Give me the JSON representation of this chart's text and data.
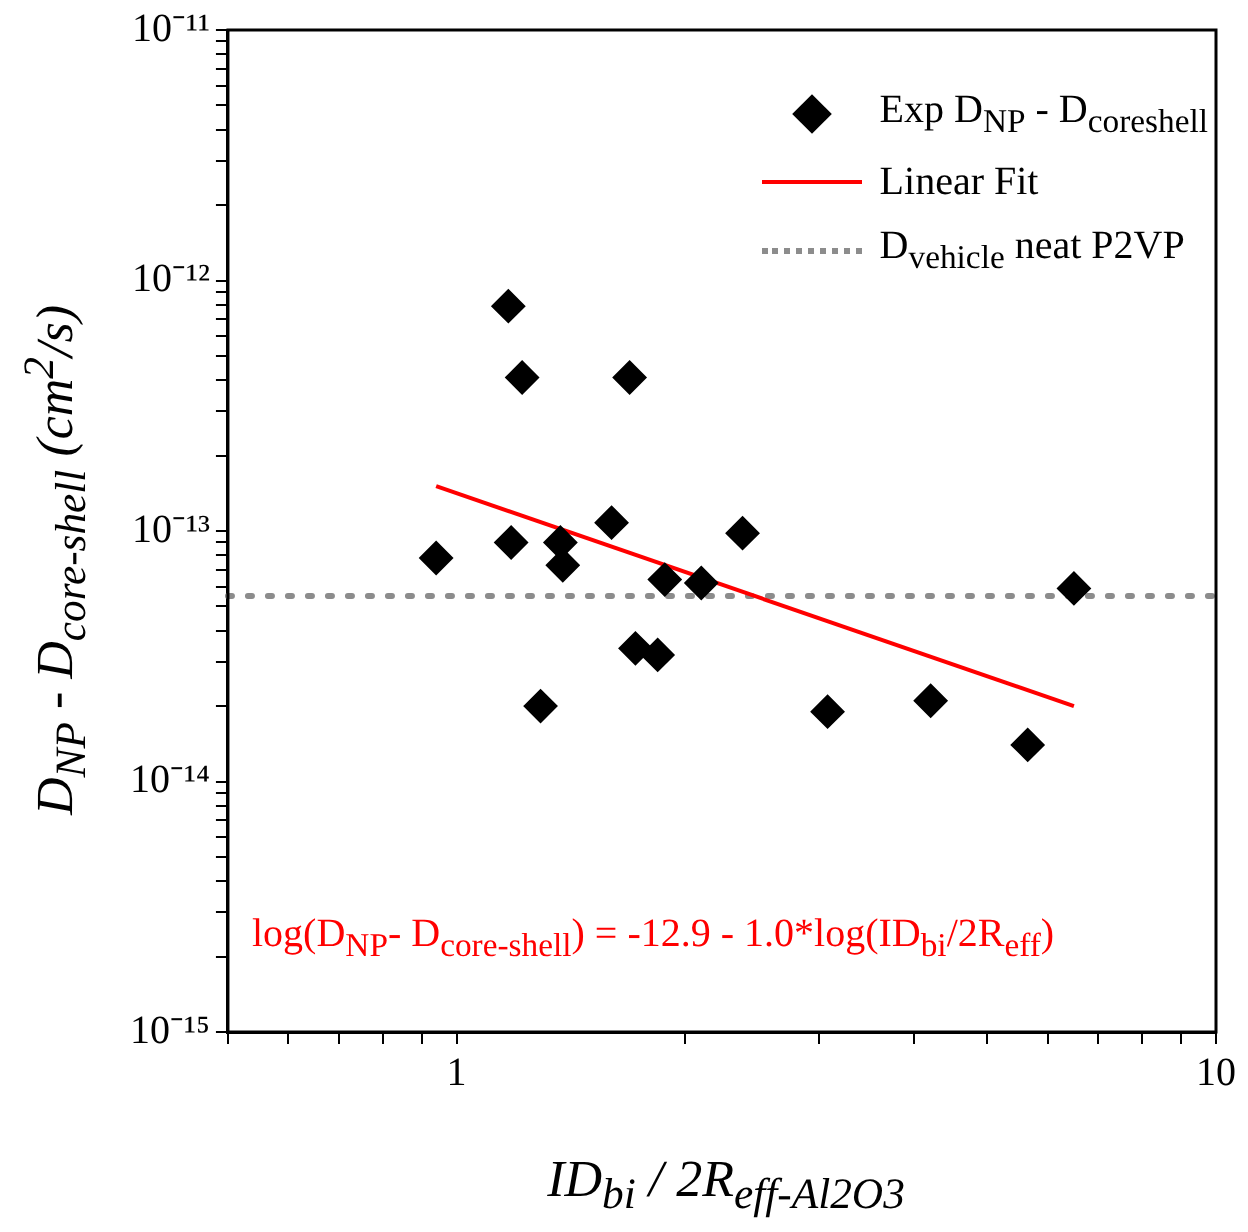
{
  "chart_data": {
    "type": "scatter",
    "xlabel": "ID$_{bi}$ / 2R$_{eff-Al2O3}$",
    "ylabel": "D$_{NP}$ - D$_{core-shell}$ (cm$^{2}$/s)",
    "annotations": [
      "log(D$_{NP}$- D$_{core-shell}$) = -12.9 - 1.0*log(ID$_{bi}$/2R$_{eff}$)"
    ],
    "log": "xy",
    "grid": false,
    "legend": "top right",
    "xlim": [
      0.5,
      10
    ],
    "xticks": [
      {
        "value": 0.5,
        "label": null
      },
      {
        "value": 0.6,
        "label": null
      },
      {
        "value": 0.7,
        "label": null
      },
      {
        "value": 0.8,
        "label": null
      },
      {
        "value": 0.9,
        "label": null
      },
      1,
      {
        "value": 2,
        "label": null
      },
      {
        "value": 3,
        "label": null
      },
      {
        "value": 4,
        "label": null
      },
      {
        "value": 5,
        "label": null
      },
      {
        "value": 6,
        "label": null
      },
      {
        "value": 7,
        "label": null
      },
      {
        "value": 8,
        "label": null
      },
      {
        "value": 9,
        "label": null
      },
      10
    ],
    "ylim": [
      1e-15,
      1e-11
    ],
    "yticks": [
      {
        "value": 1e-15,
        "label": "10⁻¹⁵"
      },
      {
        "value": 2e-15,
        "label": null
      },
      {
        "value": 3e-15,
        "label": null
      },
      {
        "value": 4e-15,
        "label": null
      },
      {
        "value": 5e-15,
        "label": null
      },
      {
        "value": 6e-15,
        "label": null
      },
      {
        "value": 7e-15,
        "label": null
      },
      {
        "value": 8e-15,
        "label": null
      },
      {
        "value": 9e-15,
        "label": null
      },
      {
        "value": 1e-14,
        "label": "10⁻¹⁴"
      },
      {
        "value": 2e-14,
        "label": null
      },
      {
        "value": 3e-14,
        "label": null
      },
      {
        "value": 4e-14,
        "label": null
      },
      {
        "value": 5e-14,
        "label": null
      },
      {
        "value": 6e-14,
        "label": null
      },
      {
        "value": 7e-14,
        "label": null
      },
      {
        "value": 8e-14,
        "label": null
      },
      {
        "value": 9e-14,
        "label": null
      },
      {
        "value": 1e-13,
        "label": "10⁻¹³"
      },
      {
        "value": 2e-13,
        "label": null
      },
      {
        "value": 3e-13,
        "label": null
      },
      {
        "value": 4e-13,
        "label": null
      },
      {
        "value": 5e-13,
        "label": null
      },
      {
        "value": 6e-13,
        "label": null
      },
      {
        "value": 7e-13,
        "label": null
      },
      {
        "value": 8e-13,
        "label": null
      },
      {
        "value": 9e-13,
        "label": null
      },
      {
        "value": 1e-12,
        "label": "10⁻¹²"
      },
      {
        "value": 2e-12,
        "label": null
      },
      {
        "value": 3e-12,
        "label": null
      },
      {
        "value": 4e-12,
        "label": null
      },
      {
        "value": 5e-12,
        "label": null
      },
      {
        "value": 6e-12,
        "label": null
      },
      {
        "value": 7e-12,
        "label": null
      },
      {
        "value": 8e-12,
        "label": null
      },
      {
        "value": 9e-12,
        "label": null
      },
      {
        "value": 1e-11,
        "label": "10⁻¹¹"
      }
    ],
    "series": [
      {
        "name": "Exp D$_{NP}$ - D$_{coreshell}$",
        "marker": "diamond",
        "color": "#000000",
        "x": [
          0.94,
          1.17,
          1.22,
          1.18,
          1.37,
          1.38,
          1.29,
          1.6,
          1.69,
          1.72,
          1.84,
          1.88,
          2.1,
          2.38,
          3.08,
          4.21,
          5.65,
          6.5
        ],
        "values": [
          7.8e-14,
          7.9e-13,
          4.1e-13,
          9e-14,
          9e-14,
          7.3e-14,
          2e-14,
          1.08e-13,
          4.1e-13,
          3.4e-14,
          3.2e-14,
          6.4e-14,
          6.2e-14,
          9.8e-14,
          1.9e-14,
          2.1e-14,
          1.4e-14,
          5.9e-14
        ]
      },
      {
        "name": "Linear Fit",
        "type": "line",
        "marker": "none",
        "color": "#ff0000",
        "x": [
          0.94,
          6.5
        ],
        "values": [
          1.51e-13,
          2e-14
        ]
      }
    ],
    "ref_lines": [
      {
        "axis": "y",
        "value": 5.5e-14,
        "label": "D$_{vehicle}$ neat P2VP",
        "color": "#8c8c8c",
        "line_style": "dotted"
      }
    ]
  }
}
